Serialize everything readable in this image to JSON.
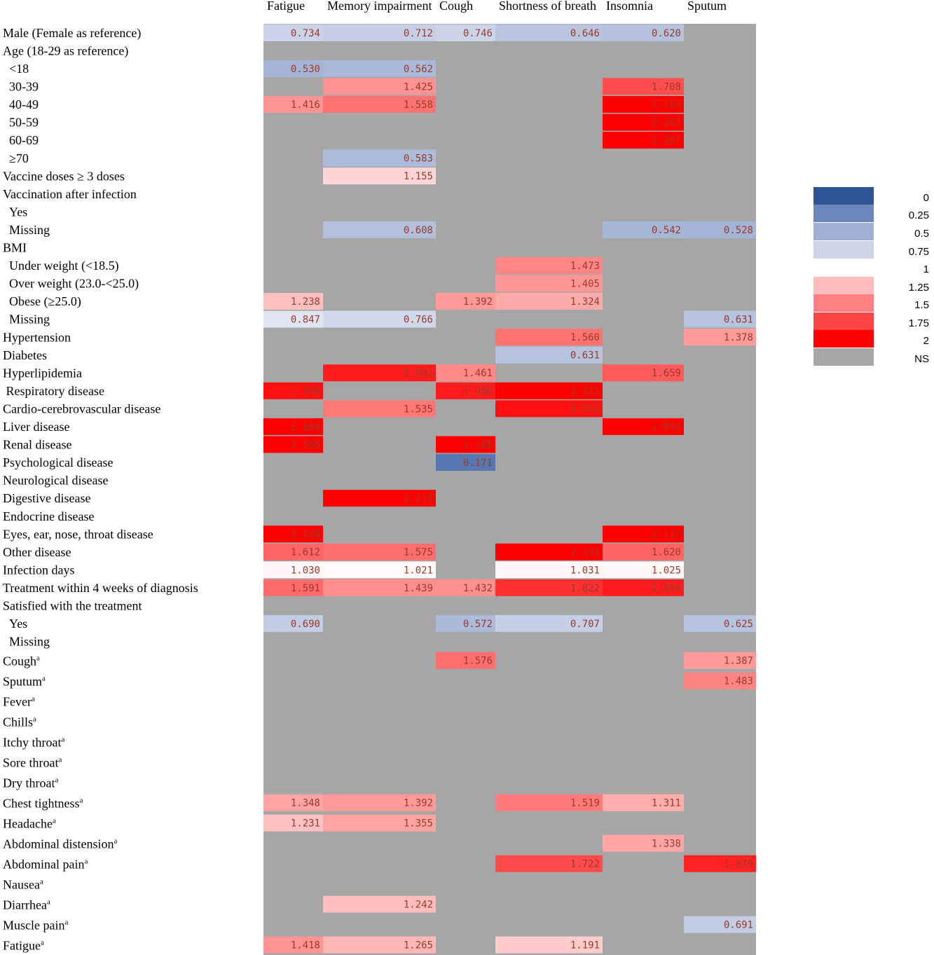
{
  "chart_data": {
    "type": "heatmap",
    "columns": [
      "Fatigue",
      "Memory impairment",
      "Cough",
      "Shortness of breath",
      "Insomnia",
      "Sputum"
    ],
    "superscript_marker": "a",
    "rows": [
      {
        "label": "Male (Female as reference)",
        "indent": 0,
        "sup": false,
        "values": [
          0.734,
          0.712,
          0.746,
          0.646,
          0.62,
          null
        ]
      },
      {
        "label": "Age (18-29 as reference)",
        "indent": 0,
        "sup": false,
        "values": [
          null,
          null,
          null,
          null,
          null,
          null
        ]
      },
      {
        "label": "<18",
        "indent": 1,
        "sup": false,
        "values": [
          0.53,
          0.562,
          null,
          null,
          null,
          null
        ]
      },
      {
        "label": "30-39",
        "indent": 1,
        "sup": false,
        "values": [
          null,
          1.425,
          null,
          null,
          1.708,
          null
        ]
      },
      {
        "label": "40-49",
        "indent": 1,
        "sup": false,
        "values": [
          1.416,
          1.558,
          null,
          null,
          2.185,
          null
        ]
      },
      {
        "label": "50-59",
        "indent": 1,
        "sup": false,
        "values": [
          null,
          null,
          null,
          null,
          2.203,
          null
        ]
      },
      {
        "label": "60-69",
        "indent": 1,
        "sup": false,
        "values": [
          null,
          null,
          null,
          null,
          2.287,
          null
        ]
      },
      {
        "label": "≥70",
        "indent": 1,
        "sup": false,
        "values": [
          null,
          0.583,
          null,
          null,
          null,
          null
        ]
      },
      {
        "label": "Vaccine doses ≥ 3 doses",
        "indent": 0,
        "sup": false,
        "values": [
          null,
          1.155,
          null,
          null,
          null,
          null
        ]
      },
      {
        "label": "Vaccination after infection",
        "indent": 0,
        "sup": false,
        "values": [
          null,
          null,
          null,
          null,
          null,
          null
        ]
      },
      {
        "label": "Yes",
        "indent": 1,
        "sup": false,
        "values": [
          null,
          null,
          null,
          null,
          null,
          null
        ]
      },
      {
        "label": "Missing",
        "indent": 1,
        "sup": false,
        "values": [
          null,
          0.608,
          null,
          null,
          0.542,
          0.528
        ]
      },
      {
        "label": "BMI",
        "indent": 0,
        "sup": false,
        "values": [
          null,
          null,
          null,
          null,
          null,
          null
        ]
      },
      {
        "label": "Under weight (<18.5)",
        "indent": 1,
        "sup": false,
        "values": [
          null,
          null,
          null,
          1.473,
          null,
          null
        ]
      },
      {
        "label": "Over weight (23.0-<25.0)",
        "indent": 1,
        "sup": false,
        "values": [
          null,
          null,
          null,
          1.405,
          null,
          null
        ]
      },
      {
        "label": "Obese (≥25.0)",
        "indent": 1,
        "sup": false,
        "values": [
          1.238,
          null,
          1.392,
          1.324,
          null,
          null
        ]
      },
      {
        "label": "Missing",
        "indent": 1,
        "sup": false,
        "values": [
          0.847,
          0.766,
          null,
          null,
          null,
          0.631
        ]
      },
      {
        "label": "Hypertension",
        "indent": 0,
        "sup": false,
        "values": [
          null,
          null,
          null,
          1.56,
          null,
          1.378
        ]
      },
      {
        "label": "Diabetes",
        "indent": 0,
        "sup": false,
        "values": [
          null,
          null,
          null,
          0.631,
          null,
          null
        ]
      },
      {
        "label": "Hyperlipidemia",
        "indent": 0,
        "sup": false,
        "values": [
          null,
          1.902,
          1.461,
          null,
          1.659,
          null
        ]
      },
      {
        "label": "Respiratory disease",
        "indent": 0.5,
        "sup": false,
        "values": [
          1.94,
          null,
          1.9,
          2.325,
          null,
          null
        ]
      },
      {
        "label": "Cardio-cerebrovascular disease",
        "indent": 0,
        "sup": false,
        "values": [
          null,
          1.535,
          null,
          1.936,
          null,
          null
        ]
      },
      {
        "label": "Liver disease",
        "indent": 0,
        "sup": false,
        "values": [
          2.169,
          null,
          null,
          null,
          2.094,
          null
        ]
      },
      {
        "label": "Renal disease",
        "indent": 0,
        "sup": false,
        "values": [
          2.265,
          null,
          3.405,
          null,
          null,
          null
        ]
      },
      {
        "label": "Psychological disease",
        "indent": 0,
        "sup": false,
        "values": [
          null,
          null,
          0.171,
          null,
          null,
          null
        ]
      },
      {
        "label": "Neurological disease",
        "indent": 0,
        "sup": false,
        "values": [
          null,
          null,
          null,
          null,
          null,
          null
        ]
      },
      {
        "label": "Digestive disease",
        "indent": 0,
        "sup": false,
        "values": [
          null,
          2.211,
          null,
          null,
          null,
          null
        ]
      },
      {
        "label": "Endocrine disease",
        "indent": 0,
        "sup": false,
        "values": [
          null,
          null,
          null,
          null,
          null,
          null
        ]
      },
      {
        "label": "Eyes, ear, nose, throat disease",
        "indent": 0,
        "sup": false,
        "values": [
          2.424,
          null,
          null,
          null,
          2.117,
          null
        ]
      },
      {
        "label": "Other disease",
        "indent": 0,
        "sup": false,
        "values": [
          1.612,
          1.575,
          null,
          2.131,
          1.62,
          null
        ]
      },
      {
        "label": "Infection days",
        "indent": 0,
        "sup": false,
        "values": [
          1.03,
          1.021,
          null,
          1.031,
          1.025,
          null
        ]
      },
      {
        "label": "Treatment within 4 weeks of diagnosis",
        "indent": 0,
        "sup": false,
        "values": [
          1.591,
          1.439,
          1.432,
          1.822,
          1.898,
          null
        ]
      },
      {
        "label": "Satisfied with the treatment",
        "indent": 0,
        "sup": false,
        "values": [
          null,
          null,
          null,
          null,
          null,
          null
        ]
      },
      {
        "label": "Yes",
        "indent": 1,
        "sup": false,
        "values": [
          0.69,
          null,
          0.572,
          0.707,
          null,
          0.625
        ]
      },
      {
        "label": "Missing",
        "indent": 1,
        "sup": false,
        "values": [
          null,
          null,
          null,
          null,
          null,
          null
        ]
      },
      {
        "label": "Cough",
        "indent": 0,
        "sup": true,
        "values": [
          null,
          null,
          1.576,
          null,
          null,
          1.387
        ]
      },
      {
        "label": "Sputum",
        "indent": 0,
        "sup": true,
        "values": [
          null,
          null,
          null,
          null,
          null,
          1.483
        ]
      },
      {
        "label": "Fever",
        "indent": 0,
        "sup": true,
        "values": [
          null,
          null,
          null,
          null,
          null,
          null
        ]
      },
      {
        "label": "Chills",
        "indent": 0,
        "sup": true,
        "values": [
          null,
          null,
          null,
          null,
          null,
          null
        ]
      },
      {
        "label": "Itchy throat",
        "indent": 0,
        "sup": true,
        "values": [
          null,
          null,
          null,
          null,
          null,
          null
        ]
      },
      {
        "label": "Sore throat",
        "indent": 0,
        "sup": true,
        "values": [
          null,
          null,
          null,
          null,
          null,
          null
        ]
      },
      {
        "label": "Dry throat",
        "indent": 0,
        "sup": true,
        "values": [
          null,
          null,
          null,
          null,
          null,
          null
        ]
      },
      {
        "label": "Chest tightness",
        "indent": 0,
        "sup": true,
        "values": [
          1.348,
          1.392,
          null,
          1.519,
          1.311,
          null
        ]
      },
      {
        "label": "Headache",
        "indent": 0,
        "sup": true,
        "values": [
          1.231,
          1.355,
          null,
          null,
          null,
          null
        ]
      },
      {
        "label": "Abdominal distension",
        "indent": 0,
        "sup": true,
        "values": [
          null,
          null,
          null,
          null,
          1.338,
          null
        ]
      },
      {
        "label": "Abdominal pain",
        "indent": 0,
        "sup": true,
        "values": [
          null,
          null,
          null,
          1.722,
          null,
          1.879
        ]
      },
      {
        "label": "Nausea",
        "indent": 0,
        "sup": true,
        "values": [
          null,
          null,
          null,
          null,
          null,
          null
        ]
      },
      {
        "label": "Diarrhea",
        "indent": 0,
        "sup": true,
        "values": [
          null,
          1.242,
          null,
          null,
          null,
          null
        ]
      },
      {
        "label": "Muscle pain",
        "indent": 0,
        "sup": true,
        "values": [
          null,
          null,
          null,
          null,
          null,
          0.691
        ]
      },
      {
        "label": "Fatigue",
        "indent": 0,
        "sup": true,
        "values": [
          1.418,
          1.265,
          null,
          1.191,
          null,
          null
        ]
      }
    ],
    "legend": [
      {
        "label": "0",
        "color": "#2f5597"
      },
      {
        "label": "0.25",
        "color": "#6a86bb"
      },
      {
        "label": "0.5",
        "color": "#9fb0d4"
      },
      {
        "label": "0.75",
        "color": "#cdd5e8"
      },
      {
        "label": "1",
        "color": "#ffffff"
      },
      {
        "label": "1.25",
        "color": "#ffbcbc"
      },
      {
        "label": "1.5",
        "color": "#ff8080"
      },
      {
        "label": "1.75",
        "color": "#ff4444"
      },
      {
        "label": "2",
        "color": "#ff0000"
      },
      {
        "label": "NS",
        "color": "#a6a6a6"
      }
    ],
    "ns_color": "#a6a6a6",
    "value_text_color": "#9a3a2a",
    "legend_placement": "right"
  }
}
